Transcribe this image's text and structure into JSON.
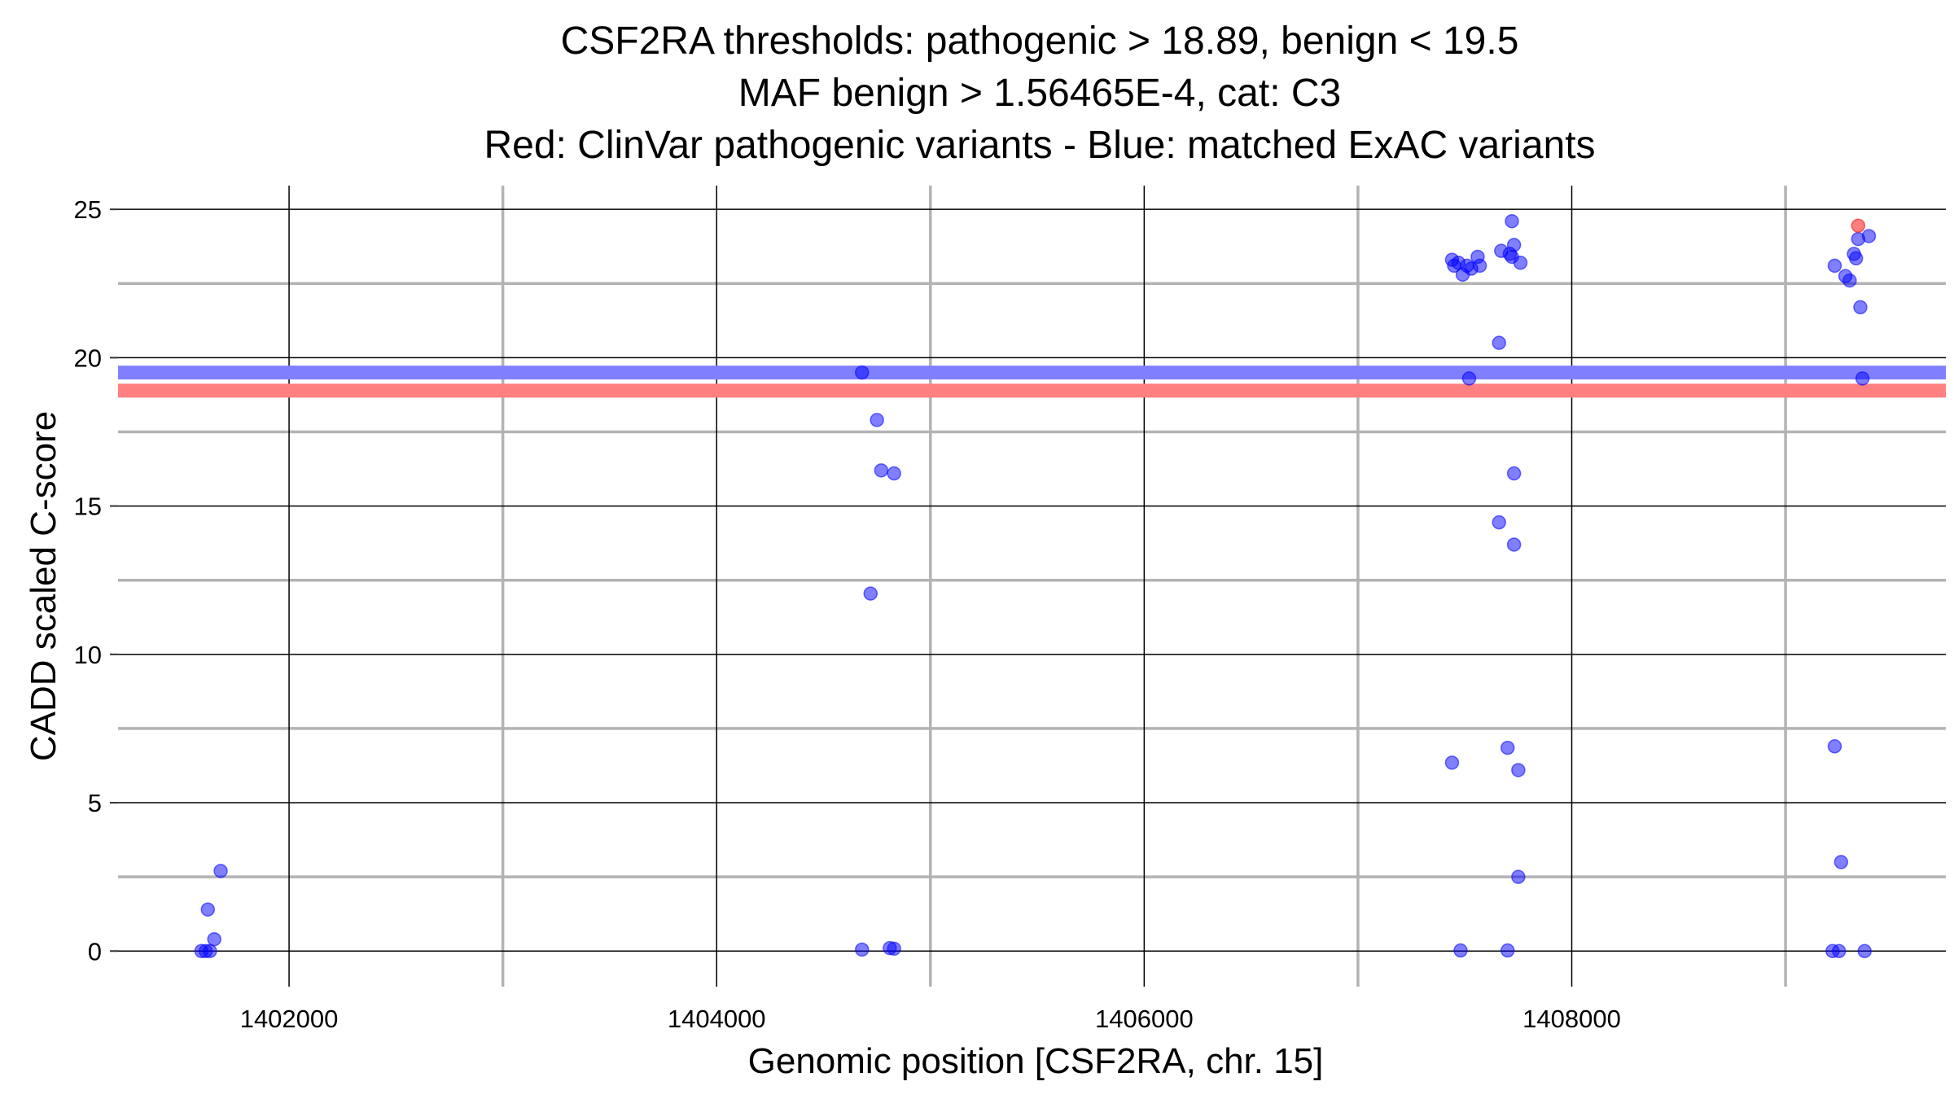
{
  "chart_data": {
    "type": "scatter",
    "title_lines": [
      "CSF2RA thresholds: pathogenic > 18.89, benign < 19.5",
      "MAF benign > 1.56465E-4, cat: C3",
      "Red: ClinVar pathogenic variants - Blue: matched ExAC variants"
    ],
    "xlabel": "Genomic position [CSF2RA, chr. 15]",
    "ylabel": "CADD scaled C-score",
    "xlim": [
      1401200,
      1409750
    ],
    "ylim": [
      -1.2,
      25.8
    ],
    "x_ticks": [
      1402000,
      1404000,
      1406000,
      1408000
    ],
    "x_tick_labels": [
      "1402000",
      "1404000",
      "1406000",
      "1408000"
    ],
    "x_minor_gridlines": [
      1403000,
      1405000,
      1407000,
      1409000
    ],
    "y_ticks": [
      0,
      5,
      10,
      15,
      20,
      25
    ],
    "y_tick_labels": [
      "0",
      "5",
      "10",
      "15",
      "20",
      "25"
    ],
    "y_minor_gridlines": [
      2.5,
      7.5,
      12.5,
      17.5,
      22.5
    ],
    "thresholds": [
      {
        "name": "benign threshold",
        "value": 19.5,
        "color": "#8080ff"
      },
      {
        "name": "pathogenic threshold",
        "value": 18.89,
        "color": "#ff8080"
      }
    ],
    "series": [
      {
        "name": "matched ExAC variants",
        "color": "#0000ff",
        "points": [
          [
            1401590,
            0.0
          ],
          [
            1401610,
            0.0
          ],
          [
            1401630,
            0.0
          ],
          [
            1401620,
            1.4
          ],
          [
            1401650,
            0.4
          ],
          [
            1401680,
            2.7
          ],
          [
            1404680,
            19.5
          ],
          [
            1404750,
            17.9
          ],
          [
            1404770,
            16.2
          ],
          [
            1404830,
            16.1
          ],
          [
            1404720,
            12.05
          ],
          [
            1404680,
            0.05
          ],
          [
            1404810,
            0.1
          ],
          [
            1404830,
            0.08
          ],
          [
            1407440,
            23.3
          ],
          [
            1407450,
            23.1
          ],
          [
            1407470,
            23.2
          ],
          [
            1407490,
            22.8
          ],
          [
            1407510,
            23.1
          ],
          [
            1407530,
            23.0
          ],
          [
            1407560,
            23.4
          ],
          [
            1407570,
            23.1
          ],
          [
            1407520,
            19.3
          ],
          [
            1407670,
            23.6
          ],
          [
            1407720,
            24.6
          ],
          [
            1407730,
            23.8
          ],
          [
            1407720,
            23.4
          ],
          [
            1407710,
            23.5
          ],
          [
            1407760,
            23.2
          ],
          [
            1407660,
            20.5
          ],
          [
            1407730,
            16.1
          ],
          [
            1407660,
            14.45
          ],
          [
            1407730,
            13.7
          ],
          [
            1407440,
            6.35
          ],
          [
            1407700,
            6.85
          ],
          [
            1407750,
            6.1
          ],
          [
            1407750,
            2.5
          ],
          [
            1407480,
            0.02
          ],
          [
            1407700,
            0.02
          ],
          [
            1409230,
            23.1
          ],
          [
            1409280,
            22.75
          ],
          [
            1409300,
            22.6
          ],
          [
            1409320,
            23.5
          ],
          [
            1409330,
            23.35
          ],
          [
            1409340,
            24.0
          ],
          [
            1409390,
            24.1
          ],
          [
            1409350,
            21.7
          ],
          [
            1409360,
            19.3
          ],
          [
            1409230,
            6.9
          ],
          [
            1409260,
            3.0
          ],
          [
            1409220,
            0.0
          ],
          [
            1409250,
            0.0
          ],
          [
            1409370,
            0.0
          ]
        ]
      },
      {
        "name": "ClinVar pathogenic variants",
        "color": "#ff0000",
        "points": [
          [
            1409340,
            24.45
          ]
        ]
      }
    ]
  }
}
